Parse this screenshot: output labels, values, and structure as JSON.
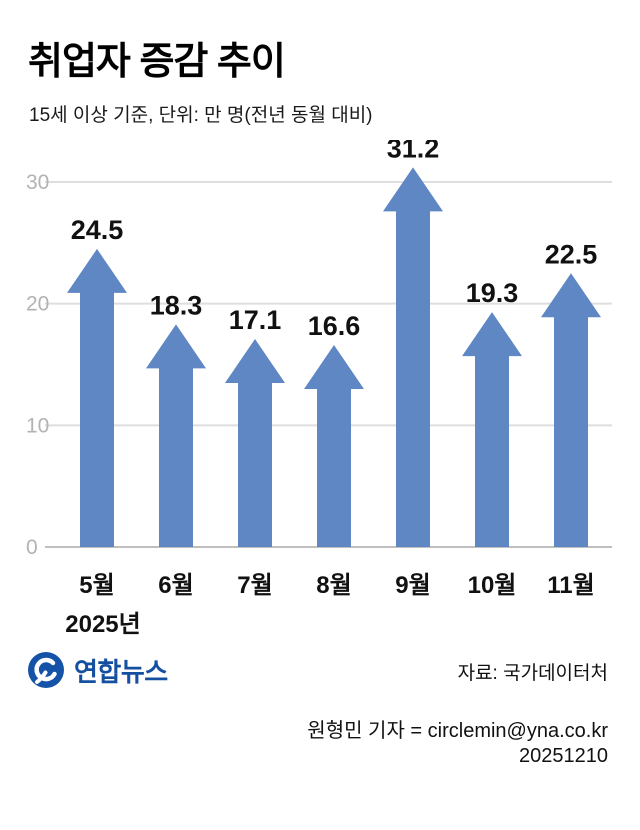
{
  "header": {
    "title": "취업자 증감 추이",
    "subtitle": "15세 이상 기준, 단위: 만 명(전년 동월 대비)"
  },
  "chart_data": {
    "type": "bar",
    "style": "upward-arrow-bars",
    "title": "취업자 증감 추이",
    "subtitle": "15세 이상 기준, 단위: 만 명(전년 동월 대비)",
    "categories": [
      "5월",
      "6월",
      "7월",
      "8월",
      "9월",
      "10월",
      "11월"
    ],
    "values": [
      24.5,
      18.3,
      17.1,
      16.6,
      31.2,
      19.3,
      22.5
    ],
    "year_label": "2025년",
    "xlabel": "",
    "ylabel": "만 명",
    "ylim": [
      0,
      30
    ],
    "yticks": [
      0,
      10,
      20,
      30
    ],
    "grid": true,
    "legend": "none",
    "bar_color": "#5e87c3",
    "grid_color": "#dedede",
    "axis_line_color": "#bfbfbf",
    "tick_label_color": "#b3b3b3",
    "value_label_color": "#111111"
  },
  "footer": {
    "logo_text": "연합뉴스",
    "brand_color": "#1550a0",
    "source": "자료: 국가데이터처",
    "byline": "원형민 기자 = circlemin@yna.co.kr",
    "date": "20251210"
  }
}
